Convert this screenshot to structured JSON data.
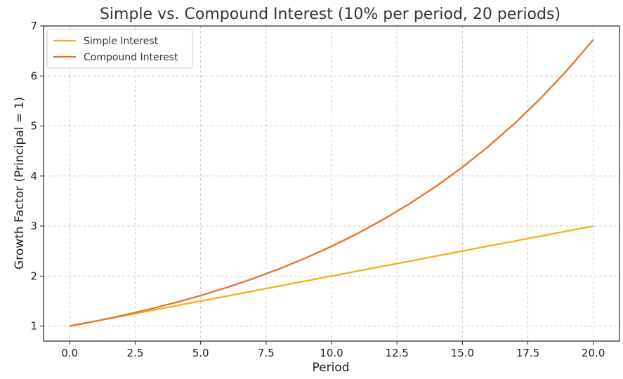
{
  "chart_data": {
    "type": "line",
    "title": "Simple vs. Compound Interest (10% per period, 20 periods)",
    "xlabel": "Period",
    "ylabel": "Growth Factor (Principal = 1)",
    "xlim": [
      -1,
      21
    ],
    "ylim": [
      0.7,
      7
    ],
    "xticks": [
      "0.0",
      "2.5",
      "5.0",
      "7.5",
      "10.0",
      "12.5",
      "15.0",
      "17.5",
      "20.0"
    ],
    "yticks": [
      "1",
      "2",
      "3",
      "4",
      "5",
      "6",
      "7"
    ],
    "grid": true,
    "legend_position": "top-left",
    "x": [
      0,
      1,
      2,
      3,
      4,
      5,
      6,
      7,
      8,
      9,
      10,
      11,
      12,
      13,
      14,
      15,
      16,
      17,
      18,
      19,
      20
    ],
    "series": [
      {
        "name": "Simple Interest",
        "color": "#f5b21f",
        "values": [
          1.0,
          1.1,
          1.2,
          1.3,
          1.4,
          1.5,
          1.6,
          1.7,
          1.8,
          1.9,
          2.0,
          2.1,
          2.2,
          2.3,
          2.4,
          2.5,
          2.6,
          2.7,
          2.8,
          2.9,
          3.0
        ]
      },
      {
        "name": "Compound Interest",
        "color": "#e8752f",
        "values": [
          1.0,
          1.1,
          1.21,
          1.331,
          1.464,
          1.611,
          1.772,
          1.949,
          2.144,
          2.358,
          2.594,
          2.853,
          3.138,
          3.452,
          3.797,
          4.177,
          4.595,
          5.054,
          5.56,
          6.116,
          6.727
        ]
      }
    ]
  }
}
